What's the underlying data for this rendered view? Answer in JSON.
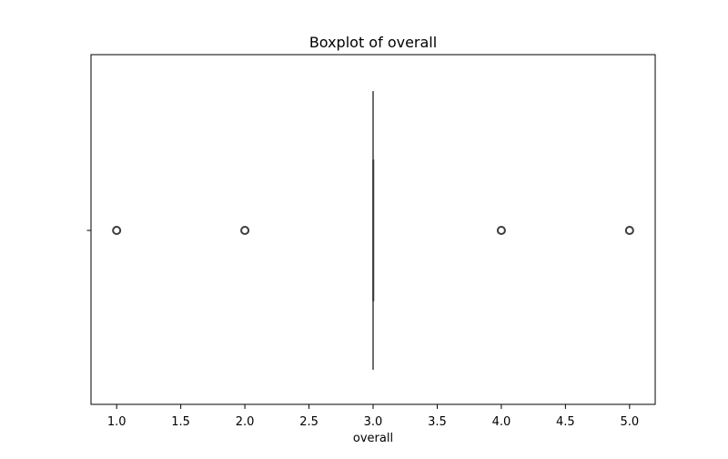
{
  "chart_data": {
    "type": "boxplot",
    "title": "Boxplot of overall",
    "xlabel": "overall",
    "ylabel": "",
    "orientation": "horizontal",
    "xlim": [
      0.8,
      5.2
    ],
    "x_ticks": [
      1.0,
      1.5,
      2.0,
      2.5,
      3.0,
      3.5,
      4.0,
      4.5,
      5.0
    ],
    "x_tick_labels": [
      "1.0",
      "1.5",
      "2.0",
      "2.5",
      "3.0",
      "3.5",
      "4.0",
      "4.5",
      "5.0"
    ],
    "grid": false,
    "box": {
      "min_whisker": 3.0,
      "q1": 3.0,
      "median": 3.0,
      "q3": 3.0,
      "max_whisker": 3.0
    },
    "outliers": [
      1.0,
      2.0,
      4.0,
      5.0
    ],
    "colors": {
      "box_line": "#3d3d3d",
      "outlier_edge": "#3d3d3d",
      "axes": "#000000"
    }
  }
}
